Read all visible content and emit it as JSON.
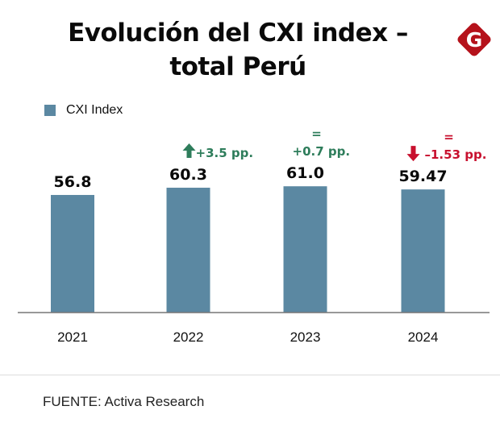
{
  "header": {
    "title_line1": "Evolución del CXI index –",
    "title_line2": "total Perú",
    "logo_letter": "G",
    "logo_icon": "brand-logo-g-diamond"
  },
  "colors": {
    "bar": "#5b88a2",
    "positive": "#2e7d5b",
    "negative": "#c8102e",
    "logo": "#b5121b",
    "text": "#0a0a0a",
    "axis": "#777777"
  },
  "chart_data": {
    "type": "bar",
    "title": "Evolución del CXI index – total Perú",
    "xlabel": "",
    "ylabel": "",
    "ylim": [
      0,
      70
    ],
    "grid": false,
    "legend": {
      "placement": "top-left",
      "entries": [
        "CXI Index"
      ]
    },
    "categories": [
      "2021",
      "2022",
      "2023",
      "2024"
    ],
    "series": [
      {
        "name": "CXI Index",
        "values": [
          56.8,
          60.3,
          61.0,
          59.47
        ]
      }
    ],
    "value_labels": [
      "56.8",
      "60.3",
      "61.0",
      "59.47"
    ],
    "annotations": [
      null,
      {
        "category": "2022",
        "symbol": "",
        "arrow": "up",
        "text": "+3.5 pp.",
        "tone": "positive"
      },
      {
        "category": "2023",
        "symbol": "=",
        "arrow": "",
        "text": "+0.7 pp.",
        "tone": "positive"
      },
      {
        "category": "2024",
        "symbol": "=",
        "arrow": "down",
        "text": "–1.53 pp.",
        "tone": "negative"
      }
    ]
  },
  "footer": {
    "source": "FUENTE: Activa Research"
  }
}
